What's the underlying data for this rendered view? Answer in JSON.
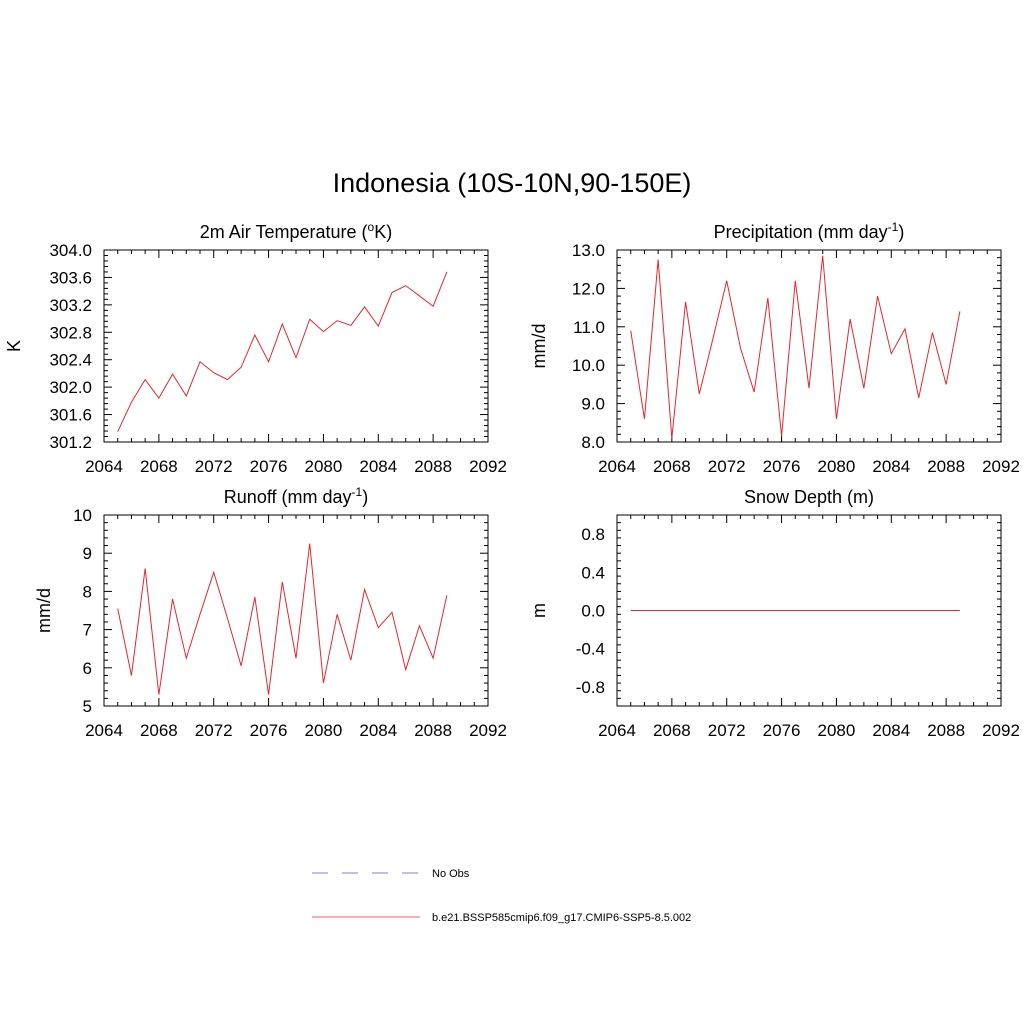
{
  "page_title": "Indonesia (10S-10N,90-150E)",
  "chart_data": [
    {
      "type": "line",
      "title_main": "2m Air Temperature (",
      "title_sup": "o",
      "title_tail": "K)",
      "ylabel": "K",
      "xlim": [
        2064,
        2092
      ],
      "ylim": [
        301.2,
        304.0
      ],
      "xticks": [
        "2064",
        "2068",
        "2072",
        "2076",
        "2080",
        "2084",
        "2088",
        "2092"
      ],
      "yticks": [
        "301.2",
        "301.6",
        "302.0",
        "302.4",
        "302.8",
        "303.2",
        "303.6",
        "304.0"
      ],
      "x": [
        2065,
        2066,
        2067,
        2068,
        2069,
        2070,
        2071,
        2072,
        2073,
        2074,
        2075,
        2076,
        2077,
        2078,
        2079,
        2080,
        2081,
        2082,
        2083,
        2084,
        2085,
        2086,
        2087,
        2088,
        2089
      ],
      "series": [
        {
          "values": [
            301.35,
            301.78,
            302.11,
            301.84,
            302.19,
            301.87,
            302.37,
            302.21,
            302.11,
            302.29,
            302.76,
            302.37,
            302.92,
            302.43,
            302.99,
            302.81,
            302.97,
            302.9,
            303.17,
            302.89,
            303.38,
            303.48,
            303.33,
            303.18,
            303.68
          ],
          "color": "#e8262a"
        }
      ]
    },
    {
      "type": "line",
      "title_main": "Precipitation (mm day",
      "title_sup": "-1",
      "title_tail": ")",
      "ylabel": "mm/d",
      "xlim": [
        2064,
        2092
      ],
      "ylim": [
        8.0,
        13.0
      ],
      "xticks": [
        "2064",
        "2068",
        "2072",
        "2076",
        "2080",
        "2084",
        "2088",
        "2092"
      ],
      "yticks": [
        "8.0",
        "9.0",
        "10.0",
        "11.0",
        "12.0",
        "13.0"
      ],
      "x": [
        2065,
        2066,
        2067,
        2068,
        2069,
        2070,
        2071,
        2072,
        2073,
        2074,
        2075,
        2076,
        2077,
        2078,
        2079,
        2080,
        2081,
        2082,
        2083,
        2084,
        2085,
        2086,
        2087,
        2088,
        2089
      ],
      "series": [
        {
          "values": [
            10.9,
            8.6,
            12.75,
            8.1,
            11.65,
            9.25,
            10.7,
            12.2,
            10.45,
            9.3,
            11.75,
            8.15,
            12.2,
            9.4,
            12.85,
            8.6,
            11.2,
            9.4,
            11.8,
            10.3,
            10.95,
            9.15,
            10.85,
            9.5,
            11.4
          ],
          "color": "#e8262a"
        }
      ]
    },
    {
      "type": "line",
      "title_main": "Runoff (mm day",
      "title_sup": "-1",
      "title_tail": ")",
      "ylabel": "mm/d",
      "xlim": [
        2064,
        2092
      ],
      "ylim": [
        5,
        10
      ],
      "xticks": [
        "2064",
        "2068",
        "2072",
        "2076",
        "2080",
        "2084",
        "2088",
        "2092"
      ],
      "yticks": [
        "5",
        "6",
        "7",
        "8",
        "9",
        "10"
      ],
      "x": [
        2065,
        2066,
        2067,
        2068,
        2069,
        2070,
        2071,
        2072,
        2073,
        2074,
        2075,
        2076,
        2077,
        2078,
        2079,
        2080,
        2081,
        2082,
        2083,
        2084,
        2085,
        2086,
        2087,
        2088,
        2089
      ],
      "series": [
        {
          "values": [
            7.55,
            5.8,
            8.6,
            5.3,
            7.8,
            6.25,
            7.4,
            8.5,
            7.3,
            6.05,
            7.85,
            5.3,
            8.25,
            6.25,
            9.25,
            5.6,
            7.4,
            6.2,
            8.05,
            7.05,
            7.45,
            5.95,
            7.1,
            6.25,
            7.9
          ],
          "color": "#e8262a"
        }
      ]
    },
    {
      "type": "line",
      "title_main": "Snow Depth (m)",
      "title_sup": "",
      "title_tail": "",
      "ylabel": "m",
      "xlim": [
        2064,
        2092
      ],
      "ylim": [
        -1.0,
        1.0
      ],
      "xticks": [
        "2064",
        "2068",
        "2072",
        "2076",
        "2080",
        "2084",
        "2088",
        "2092"
      ],
      "yticks": [
        "-0.8",
        "-0.4",
        "0.0",
        "0.4",
        "0.8"
      ],
      "x": [
        2065,
        2089
      ],
      "series": [
        {
          "values": [
            0.0,
            0.0
          ],
          "color": "#e8262a"
        }
      ]
    }
  ],
  "legend": {
    "items": [
      {
        "label": "No Obs",
        "color": "#9999ee",
        "style": "dashed"
      },
      {
        "label": "b.e21.BSSP585cmip6.f09_g17.CMIP6-SSP5-8.5.002",
        "color": "#f08080",
        "style": "solid"
      }
    ]
  }
}
